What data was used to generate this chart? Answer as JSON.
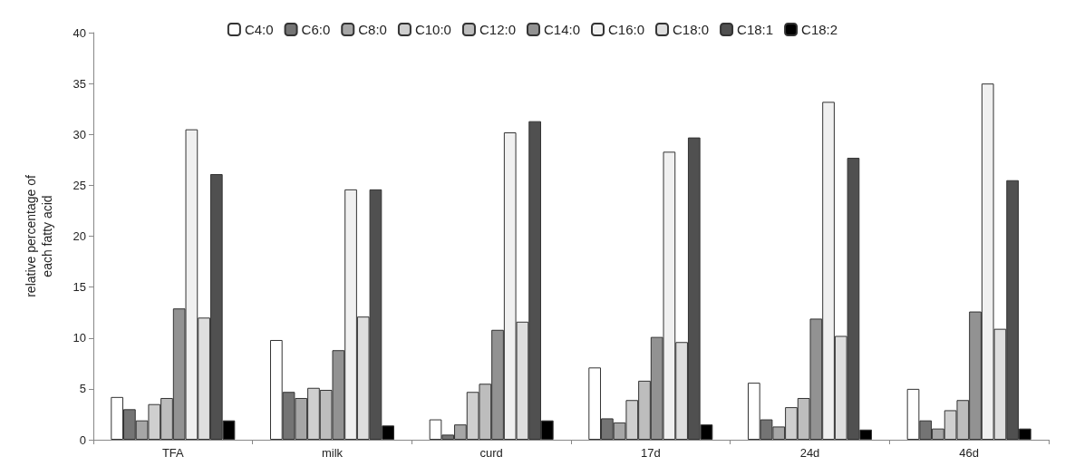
{
  "chart_data": {
    "type": "bar",
    "ylabel": "relative percentage of\neach fatty acid",
    "categories": [
      "TFA",
      "milk",
      "curd",
      "17d",
      "24d",
      "46d"
    ],
    "ylim": [
      0,
      40
    ],
    "yticks": [
      0,
      5,
      10,
      15,
      20,
      25,
      30,
      35,
      40
    ],
    "grid": false,
    "legend": "top",
    "series": [
      {
        "name": "C4:0",
        "color": "#ffffff",
        "values": [
          4.2,
          9.8,
          2.0,
          7.1,
          5.6,
          5.0
        ]
      },
      {
        "name": "C6:0",
        "color": "#747474",
        "values": [
          3.0,
          4.7,
          0.5,
          2.1,
          2.0,
          1.9
        ]
      },
      {
        "name": "C8:0",
        "color": "#a6a6a6",
        "values": [
          1.9,
          4.1,
          1.5,
          1.7,
          1.3,
          1.1
        ]
      },
      {
        "name": "C10:0",
        "color": "#cfcfcf",
        "values": [
          3.5,
          5.1,
          4.7,
          3.9,
          3.2,
          2.9
        ]
      },
      {
        "name": "C12:0",
        "color": "#bdbdbd",
        "values": [
          4.1,
          4.9,
          5.5,
          5.8,
          4.1,
          3.9
        ]
      },
      {
        "name": "C14:0",
        "color": "#929292",
        "values": [
          12.9,
          8.8,
          10.8,
          10.1,
          11.9,
          12.6
        ]
      },
      {
        "name": "C16:0",
        "color": "#f0f0f0",
        "values": [
          30.5,
          24.6,
          30.2,
          28.3,
          33.2,
          35.0
        ]
      },
      {
        "name": "C18:0",
        "color": "#dedede",
        "values": [
          12.0,
          12.1,
          11.6,
          9.6,
          10.2,
          10.9
        ]
      },
      {
        "name": "C18:1",
        "color": "#505050",
        "values": [
          26.1,
          24.6,
          31.3,
          29.7,
          27.7,
          25.5
        ]
      },
      {
        "name": "C18:2",
        "color": "#000000",
        "values": [
          1.9,
          1.4,
          1.9,
          1.5,
          1.0,
          1.1
        ]
      }
    ]
  }
}
